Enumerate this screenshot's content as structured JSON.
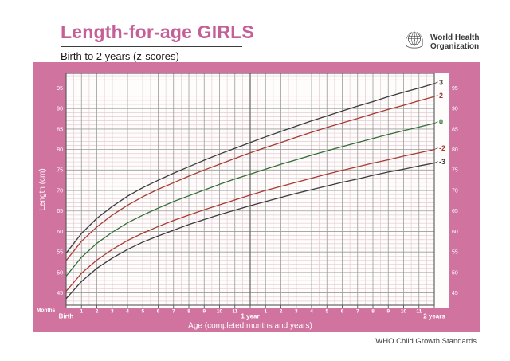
{
  "header": {
    "title": "Length-for-age GIRLS",
    "subtitle": "Birth to 2 years (z-scores)",
    "logo_line1": "World Health",
    "logo_line2": "Organization"
  },
  "footer": {
    "credit": "WHO Child Growth Standards"
  },
  "colors": {
    "band_pink": "#d1739f",
    "title_pink": "#c45f97",
    "grid_major": "#9b9b9b",
    "grid_minor": "#e2ccd5",
    "year_line": "#6d6d6d",
    "plot_border": "#555555",
    "plot_bg": "#fffdfb",
    "axis_text": "#ffffff",
    "curve_black": "#3b3b3b",
    "curve_red": "#a83a32",
    "curve_green": "#2f6f35"
  },
  "chart_data": {
    "type": "line",
    "title": "Length-for-age GIRLS",
    "subtitle": "Birth to 2 years (z-scores)",
    "xlabel": "Age (completed months and years)",
    "ylabel": "Length (cm)",
    "x_axis_unit": "Months",
    "legend_position": "end-of-line",
    "grid": {
      "minor_x_step_months": 0.5,
      "minor_y_step_cm": 1,
      "major_y_step_cm": 5
    },
    "x": [
      0,
      1,
      2,
      3,
      4,
      5,
      6,
      7,
      8,
      9,
      10,
      11,
      12,
      13,
      14,
      15,
      16,
      17,
      18,
      19,
      20,
      21,
      22,
      23,
      24
    ],
    "x_tick_labels": [
      "Birth",
      "1",
      "2",
      "3",
      "4",
      "5",
      "6",
      "7",
      "8",
      "9",
      "10",
      "11",
      "1 year",
      "1",
      "2",
      "3",
      "4",
      "5",
      "6",
      "7",
      "8",
      "9",
      "10",
      "11",
      "2 years"
    ],
    "ylim": [
      42,
      98.6
    ],
    "yticks": [
      45,
      50,
      55,
      60,
      65,
      70,
      75,
      80,
      85,
      90,
      95
    ],
    "series": [
      {
        "name": "3",
        "zscore": 3,
        "color": "#3b3b3b",
        "values": [
          54.7,
          59.5,
          63.2,
          66.1,
          68.6,
          70.7,
          72.5,
          74.2,
          75.8,
          77.4,
          78.9,
          80.3,
          81.7,
          83.1,
          84.4,
          85.7,
          87.0,
          88.2,
          89.4,
          90.6,
          91.7,
          92.9,
          94.0,
          95.0,
          96.1
        ]
      },
      {
        "name": "2",
        "zscore": 2,
        "color": "#a83a32",
        "values": [
          52.9,
          57.6,
          61.1,
          64.0,
          66.4,
          68.5,
          70.3,
          71.9,
          73.5,
          75.0,
          76.4,
          77.8,
          79.2,
          80.5,
          81.7,
          83.0,
          84.2,
          85.4,
          86.5,
          87.6,
          88.7,
          89.8,
          90.8,
          91.9,
          92.9
        ]
      },
      {
        "name": "0",
        "zscore": 0,
        "color": "#2f6f35",
        "values": [
          49.1,
          53.7,
          57.1,
          59.8,
          62.1,
          64.0,
          65.7,
          67.3,
          68.7,
          70.1,
          71.5,
          72.8,
          74.0,
          75.2,
          76.4,
          77.5,
          78.6,
          79.7,
          80.7,
          81.7,
          82.7,
          83.7,
          84.6,
          85.5,
          86.4
        ]
      },
      {
        "name": "-2",
        "zscore": -2,
        "color": "#a83a32",
        "values": [
          45.4,
          49.8,
          53.0,
          55.6,
          57.8,
          59.6,
          61.2,
          62.7,
          64.0,
          65.3,
          66.5,
          67.7,
          68.9,
          70.0,
          71.0,
          72.0,
          73.0,
          74.0,
          74.9,
          75.8,
          76.7,
          77.5,
          78.4,
          79.2,
          80.0
        ]
      },
      {
        "name": "-3",
        "zscore": -3,
        "color": "#3b3b3b",
        "values": [
          43.6,
          47.8,
          51.0,
          53.5,
          55.6,
          57.4,
          58.9,
          60.3,
          61.7,
          62.9,
          64.1,
          65.2,
          66.3,
          67.3,
          68.3,
          69.3,
          70.2,
          71.1,
          72.0,
          72.8,
          73.7,
          74.5,
          75.2,
          76.0,
          76.7
        ]
      }
    ]
  }
}
